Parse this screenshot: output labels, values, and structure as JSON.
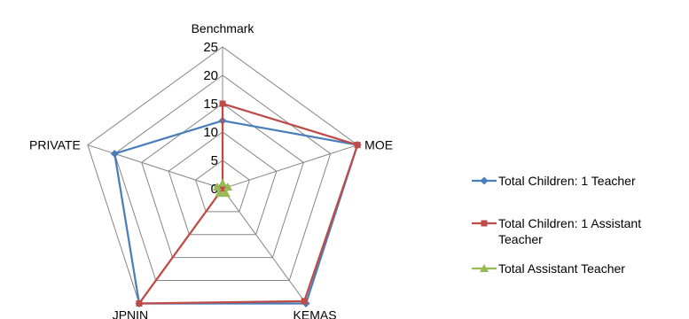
{
  "chart_data": {
    "type": "radar",
    "categories": [
      "Benchmark",
      "MOE",
      "KEMAS",
      "JPNIN",
      "PRIVATE"
    ],
    "rlim": [
      0,
      25
    ],
    "ticks": [
      "0",
      "5",
      "10",
      "15",
      "20",
      "25"
    ],
    "grid": true,
    "legend_position": "right",
    "series": [
      {
        "name": "Total Children: 1 Teacher",
        "values": [
          12,
          25,
          25,
          25,
          20
        ],
        "color": "#4a7ebb",
        "marker": "diamond"
      },
      {
        "name": "Total Children: 1 Assistant Teacher",
        "values": [
          15,
          25,
          24.5,
          25,
          0
        ],
        "color": "#be4b48",
        "marker": "square"
      },
      {
        "name": "Total Assistant Teacher",
        "values": [
          1,
          1,
          1,
          1,
          1
        ],
        "color": "#98b954",
        "marker": "triangle"
      }
    ]
  }
}
